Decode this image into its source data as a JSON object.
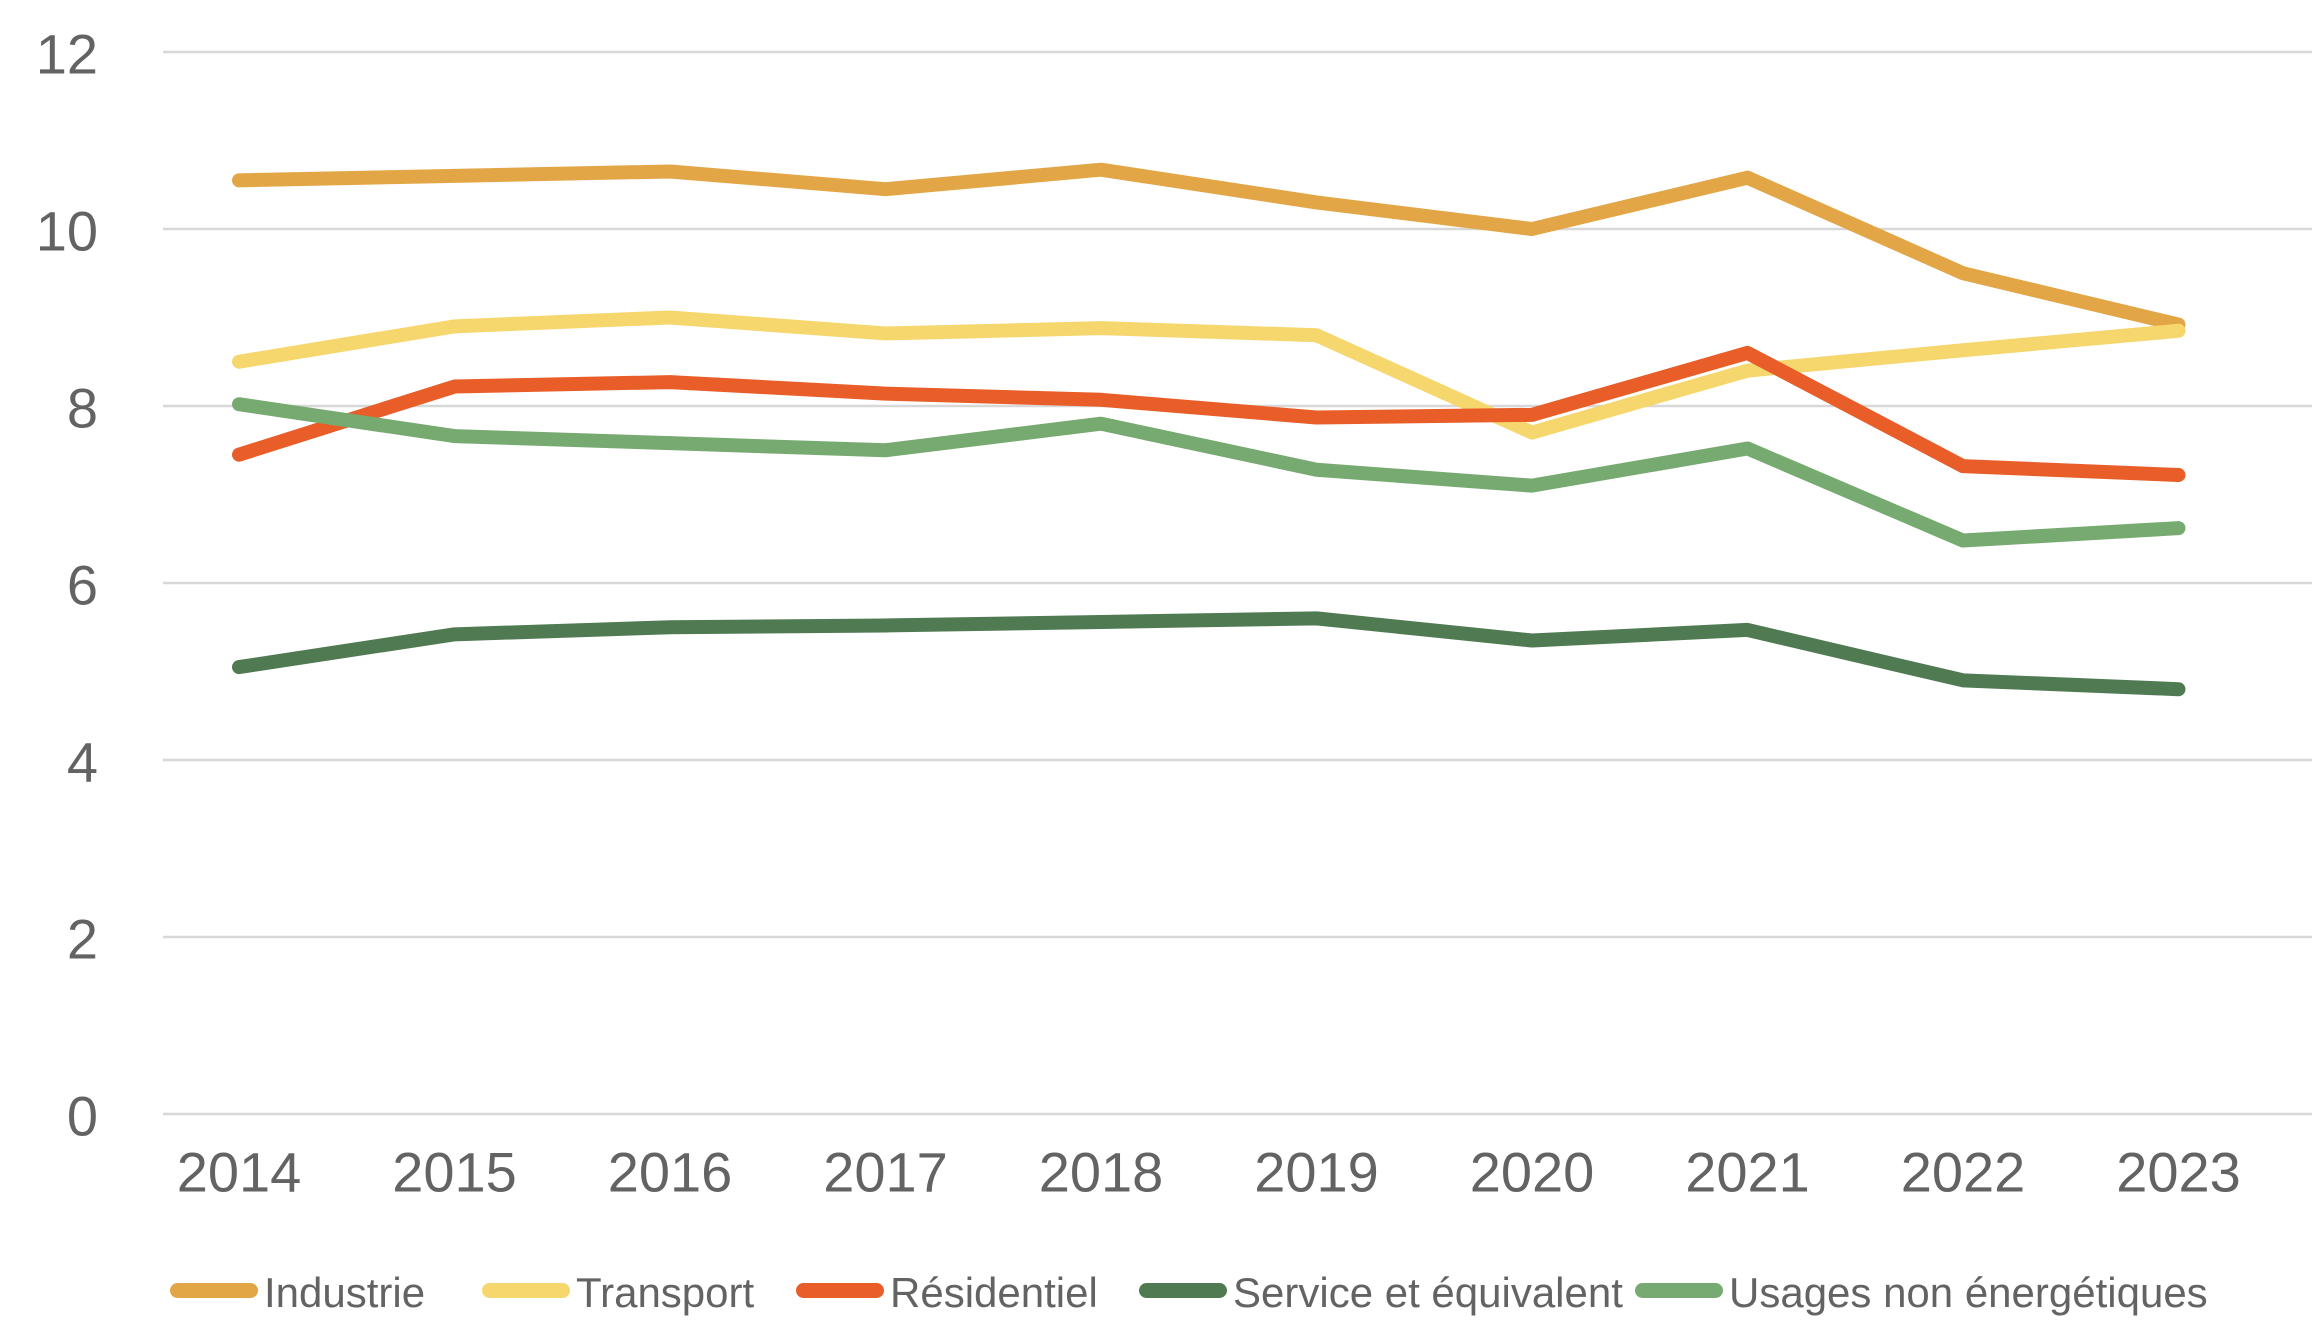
{
  "chart_data": {
    "type": "line",
    "title": "",
    "xlabel": "",
    "ylabel": "",
    "categories": [
      "2014",
      "2015",
      "2016",
      "2017",
      "2018",
      "2019",
      "2020",
      "2021",
      "2022",
      "2023"
    ],
    "series": [
      {
        "name": "Industrie",
        "color": "#E3A646",
        "values": [
          10.55,
          10.6,
          10.65,
          10.45,
          10.67,
          10.3,
          10.0,
          10.58,
          9.5,
          8.92
        ]
      },
      {
        "name": "Transport",
        "color": "#F6D76E",
        "values": [
          8.5,
          8.9,
          9.0,
          8.82,
          8.88,
          8.8,
          7.7,
          8.4,
          8.63,
          8.85
        ]
      },
      {
        "name": "Résidentiel",
        "color": "#E85D28",
        "values": [
          7.45,
          8.22,
          8.27,
          8.14,
          8.07,
          7.87,
          7.9,
          8.6,
          7.32,
          7.22
        ]
      },
      {
        "name": "Service et équivalent",
        "color": "#4F7A52",
        "values": [
          5.05,
          5.42,
          5.5,
          5.52,
          5.56,
          5.6,
          5.35,
          5.47,
          4.9,
          4.8
        ]
      },
      {
        "name": "Usages non énergétiques",
        "color": "#77AA70",
        "values": [
          8.02,
          7.66,
          7.58,
          7.5,
          7.8,
          7.28,
          7.1,
          7.52,
          6.48,
          6.62
        ]
      }
    ],
    "ylim": [
      0,
      12
    ],
    "yticks": [
      0,
      2,
      4,
      6,
      8,
      10,
      12
    ],
    "grid": "horizontal",
    "gridline_color": "#D8D8D8",
    "tick_label_color": "#636363",
    "legend_position": "bottom"
  }
}
